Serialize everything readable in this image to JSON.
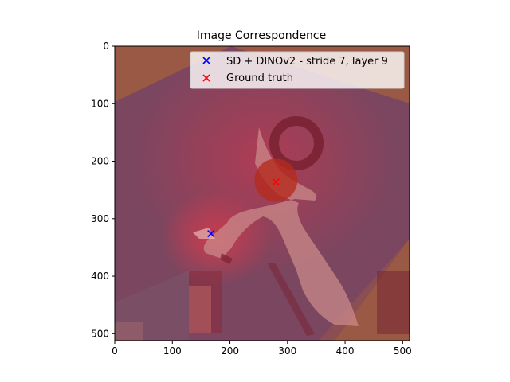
{
  "chart_data": {
    "type": "scatter",
    "title": "Image Correspondence",
    "xlabel": "",
    "ylabel": "",
    "xlim": [
      0,
      512
    ],
    "ylim": [
      512,
      0
    ],
    "y_inverted": true,
    "xticks": [
      0,
      100,
      200,
      300,
      400,
      500
    ],
    "yticks": [
      0,
      100,
      200,
      300,
      400,
      500
    ],
    "background": "image (photo overlay with heatmap)",
    "legend_position": "upper-right",
    "series": [
      {
        "name": "SD + DINOv2 - stride 7, layer 9",
        "marker": "x",
        "color": "#0000ff",
        "points": [
          [
            167,
            326
          ]
        ]
      },
      {
        "name": "Ground truth",
        "marker": "x",
        "color": "#ff0000",
        "points": [
          [
            280,
            236
          ]
        ]
      }
    ],
    "highlight_circle": {
      "x": 280,
      "y": 233,
      "color": "#b52a1c"
    }
  }
}
